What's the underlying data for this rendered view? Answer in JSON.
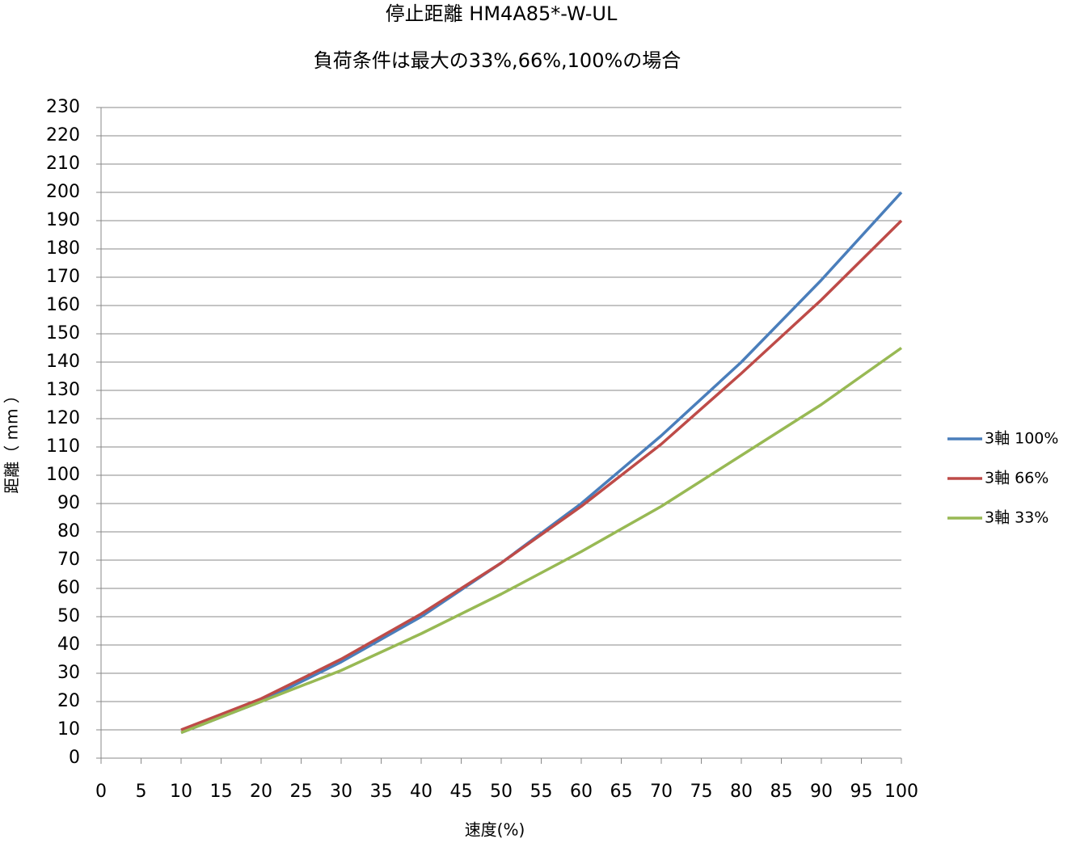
{
  "chart_data": {
    "type": "line",
    "title": "停止距離 HM4A85*-W-UL",
    "subtitle": "負荷条件は最大の33%,66%,100%の場合",
    "x_label": "速度(%)",
    "y_label": "距離（ mm ）",
    "x": [
      10,
      20,
      30,
      40,
      50,
      60,
      70,
      80,
      90,
      100
    ],
    "series": [
      {
        "name": "3軸 100%",
        "color": "#4a7ebb",
        "values": [
          9,
          20,
          34,
          50,
          69,
          90,
          114,
          140,
          169,
          200
        ]
      },
      {
        "name": "3軸 66%",
        "color": "#be4b48",
        "values": [
          10,
          21,
          35,
          51,
          69,
          89,
          111,
          136,
          162,
          190
        ]
      },
      {
        "name": "3軸 33%",
        "color": "#98b954",
        "values": [
          9,
          20,
          31,
          44,
          58,
          73,
          89,
          107,
          125,
          145
        ]
      }
    ],
    "xlim": [
      0,
      100
    ],
    "xticks": [
      0,
      5,
      10,
      15,
      20,
      25,
      30,
      35,
      40,
      45,
      50,
      55,
      60,
      65,
      70,
      75,
      80,
      85,
      90,
      95,
      100
    ],
    "ylim": [
      0,
      230
    ],
    "yticks": [
      0,
      10,
      20,
      30,
      40,
      50,
      60,
      70,
      80,
      90,
      100,
      110,
      120,
      130,
      140,
      150,
      160,
      170,
      180,
      190,
      200,
      210,
      220,
      230
    ],
    "grid": true,
    "legend": "right"
  }
}
